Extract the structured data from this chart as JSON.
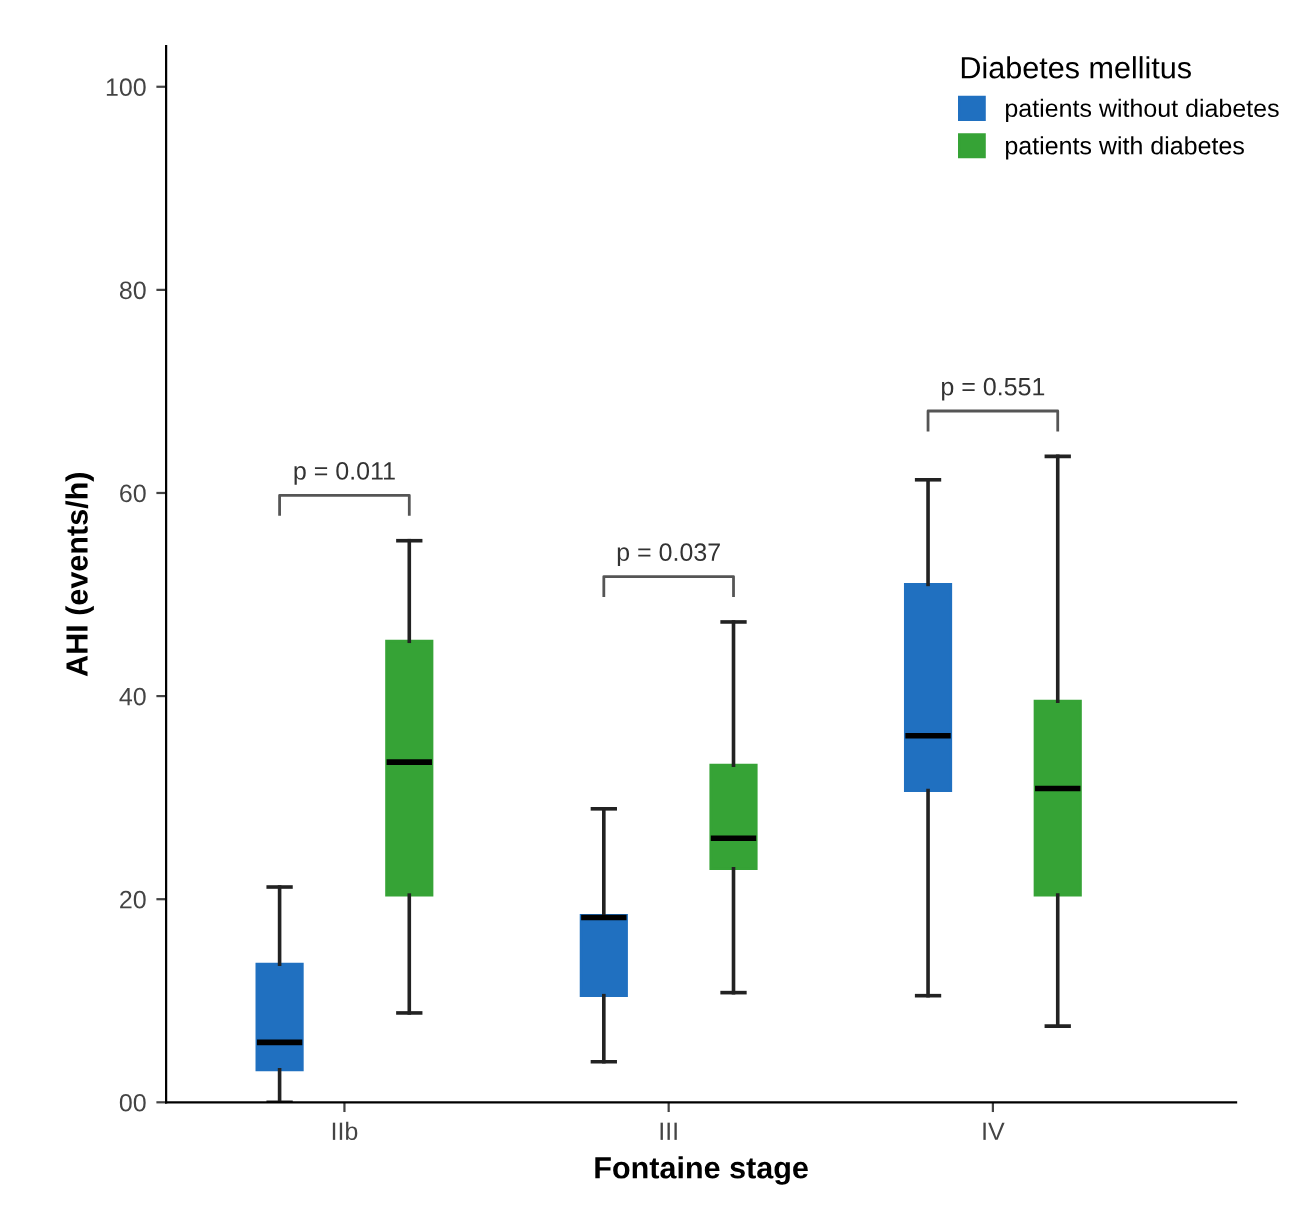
{
  "chart_data": {
    "type": "box",
    "xlabel": "Fontaine stage",
    "ylabel": "AHI (events/h)",
    "legend_title": "Diabetes mellitus",
    "categories": [
      "IIb",
      "III",
      "IV"
    ],
    "series": [
      {
        "name": "patients without diabetes",
        "color": "#2070c0",
        "boxes": [
          {
            "low": 0,
            "q1": 3.2,
            "median": 5.9,
            "q3": 13.6,
            "high": 21.2
          },
          {
            "low": 4.0,
            "q1": 10.5,
            "median": 18.2,
            "q3": 18.4,
            "high": 28.9
          },
          {
            "low": 10.5,
            "q1": 30.7,
            "median": 36.1,
            "q3": 51.0,
            "high": 61.3
          }
        ]
      },
      {
        "name": "patients with diabetes",
        "color": "#36a336",
        "boxes": [
          {
            "low": 8.8,
            "q1": 20.4,
            "median": 33.5,
            "q3": 45.4,
            "high": 55.3
          },
          {
            "low": 10.8,
            "q1": 23.0,
            "median": 26.0,
            "q3": 33.2,
            "high": 47.3
          },
          {
            "low": 7.5,
            "q1": 20.4,
            "median": 30.9,
            "q3": 39.5,
            "high": 63.6
          }
        ]
      }
    ],
    "annotations": [
      "p = 0.011",
      "p = 0.037",
      "p = 0.551"
    ],
    "ylim": [
      0,
      104
    ],
    "yticks": [
      {
        "value": 0,
        "label": "00"
      },
      20,
      40,
      60,
      80,
      100
    ],
    "grid": false,
    "legend": "top right"
  }
}
